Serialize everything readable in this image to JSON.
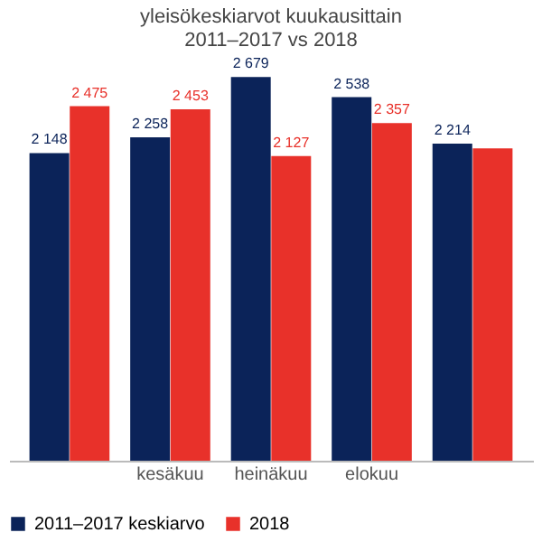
{
  "chart_data": {
    "type": "bar",
    "title": [
      "yleisökeskiarvot kuukausittain",
      "2011–2017 vs 2018"
    ],
    "categories": [
      null,
      "kesäkuu",
      "heinäkuu",
      "elokuu",
      null
    ],
    "series": [
      {
        "name": "2011–2017 keskiarvo",
        "color": "#0b2359",
        "values": [
          2148,
          2258,
          2679,
          2538,
          2214
        ],
        "value_labels": [
          "2 148",
          "2 258",
          "2 679",
          "2 538",
          "2 214"
        ]
      },
      {
        "name": "2018",
        "color": "#e8312a",
        "values": [
          2475,
          2453,
          2127,
          2357,
          2180
        ],
        "value_labels": [
          "2 475",
          "2 453",
          "2 127",
          "2 357",
          null
        ]
      }
    ],
    "legend": "bottom",
    "tick_labels": "x"
  }
}
